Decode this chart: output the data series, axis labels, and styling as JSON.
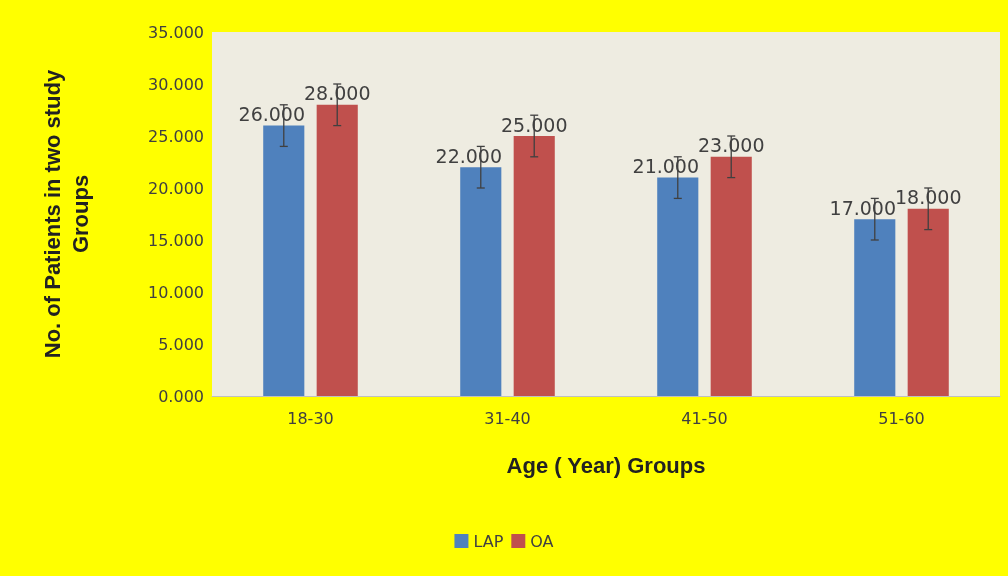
{
  "chart_data": {
    "type": "bar",
    "xlabel": "Age ( Year) Groups",
    "ylabel": "No. of Patients in two study\nGroups",
    "categories": [
      "18-30",
      "31-40",
      "41-50",
      "51-60"
    ],
    "series": [
      {
        "name": "LAP",
        "color": "#4f81bd",
        "values": [
          26,
          22,
          21,
          17
        ],
        "errors": [
          2,
          2,
          2,
          2
        ],
        "value_labels": [
          "26.000",
          "22.000",
          "21.000",
          "17.000"
        ]
      },
      {
        "name": "OA",
        "color": "#c0504d",
        "values": [
          28,
          25,
          23,
          18
        ],
        "errors": [
          2,
          2,
          2,
          2
        ],
        "value_labels": [
          "28.000",
          "25.000",
          "23.000",
          "18.000"
        ]
      }
    ],
    "ylim": [
      0,
      35
    ],
    "yticks": [
      {
        "value": 0,
        "label": "0.000"
      },
      {
        "value": 5,
        "label": "5.000"
      },
      {
        "value": 10,
        "label": "10.000"
      },
      {
        "value": 15,
        "label": "15.000"
      },
      {
        "value": 20,
        "label": "20.000"
      },
      {
        "value": 25,
        "label": "25.000"
      },
      {
        "value": 30,
        "label": "30.000"
      },
      {
        "value": 35,
        "label": "35.000"
      }
    ],
    "grid": false,
    "legend": "bottom"
  }
}
